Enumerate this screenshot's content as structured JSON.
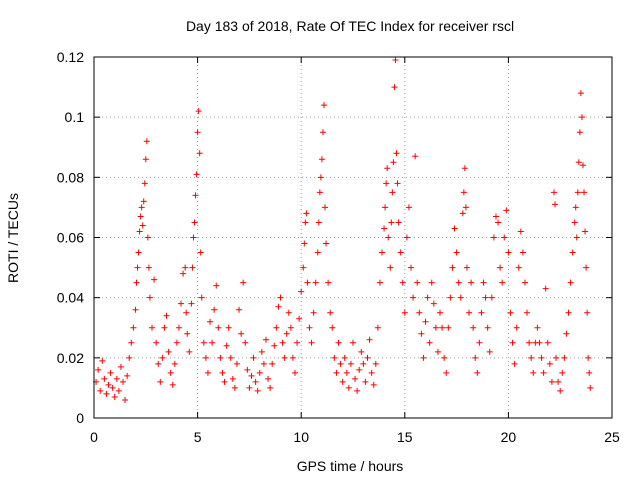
{
  "chart_data": {
    "type": "scatter",
    "title": "Day 183 of 2018, Rate Of TEC Index for receiver rscl",
    "xlabel": "GPS time / hours",
    "ylabel": "ROTI / TECUs",
    "xlim": [
      0,
      25
    ],
    "ylim": [
      0,
      0.12
    ],
    "xticks": [
      0,
      5,
      10,
      15,
      20,
      25
    ],
    "xtick_labels": [
      "0",
      "5",
      "10",
      "15",
      "20",
      "25"
    ],
    "yticks": [
      0,
      0.02,
      0.04,
      0.06,
      0.08,
      0.1,
      0.12
    ],
    "ytick_labels": [
      "0",
      "0.02",
      "0.04",
      "0.06",
      "0.08",
      "0.1",
      "0.12"
    ],
    "grid": true,
    "marker": "+",
    "color": "#ff0000",
    "series": [
      {
        "name": "ROTI",
        "points": [
          [
            0.1,
            0.012
          ],
          [
            0.2,
            0.016
          ],
          [
            0.3,
            0.009
          ],
          [
            0.4,
            0.019
          ],
          [
            0.5,
            0.013
          ],
          [
            0.6,
            0.008
          ],
          [
            0.7,
            0.011
          ],
          [
            0.8,
            0.015
          ],
          [
            0.9,
            0.01
          ],
          [
            1.0,
            0.007
          ],
          [
            1.1,
            0.013
          ],
          [
            1.2,
            0.009
          ],
          [
            1.3,
            0.017
          ],
          [
            1.4,
            0.012
          ],
          [
            1.5,
            0.006
          ],
          [
            1.6,
            0.014
          ],
          [
            1.7,
            0.02
          ],
          [
            1.8,
            0.025
          ],
          [
            1.9,
            0.03
          ],
          [
            2.0,
            0.036
          ],
          [
            2.05,
            0.045
          ],
          [
            2.1,
            0.05
          ],
          [
            2.15,
            0.055
          ],
          [
            2.2,
            0.062
          ],
          [
            2.25,
            0.067
          ],
          [
            2.3,
            0.07
          ],
          [
            2.35,
            0.064
          ],
          [
            2.4,
            0.072
          ],
          [
            2.45,
            0.078
          ],
          [
            2.5,
            0.086
          ],
          [
            2.55,
            0.092
          ],
          [
            2.6,
            0.06
          ],
          [
            2.65,
            0.05
          ],
          [
            2.7,
            0.04
          ],
          [
            2.8,
            0.03
          ],
          [
            2.9,
            0.046
          ],
          [
            3.0,
            0.025
          ],
          [
            3.1,
            0.018
          ],
          [
            3.2,
            0.012
          ],
          [
            3.3,
            0.02
          ],
          [
            3.4,
            0.03
          ],
          [
            3.5,
            0.034
          ],
          [
            3.6,
            0.022
          ],
          [
            3.7,
            0.015
          ],
          [
            3.8,
            0.011
          ],
          [
            3.9,
            0.018
          ],
          [
            4.0,
            0.025
          ],
          [
            4.1,
            0.03
          ],
          [
            4.2,
            0.038
          ],
          [
            4.3,
            0.048
          ],
          [
            4.4,
            0.05
          ],
          [
            4.45,
            0.035
          ],
          [
            4.5,
            0.028
          ],
          [
            4.6,
            0.022
          ],
          [
            4.7,
            0.038
          ],
          [
            4.75,
            0.05
          ],
          [
            4.8,
            0.06
          ],
          [
            4.85,
            0.065
          ],
          [
            4.9,
            0.074
          ],
          [
            4.95,
            0.081
          ],
          [
            5.0,
            0.095
          ],
          [
            5.05,
            0.102
          ],
          [
            5.1,
            0.088
          ],
          [
            5.15,
            0.055
          ],
          [
            5.2,
            0.04
          ],
          [
            5.3,
            0.025
          ],
          [
            5.4,
            0.02
          ],
          [
            5.5,
            0.015
          ],
          [
            5.6,
            0.032
          ],
          [
            5.7,
            0.025
          ],
          [
            5.8,
            0.036
          ],
          [
            5.9,
            0.044
          ],
          [
            6.0,
            0.03
          ],
          [
            6.1,
            0.02
          ],
          [
            6.2,
            0.015
          ],
          [
            6.3,
            0.012
          ],
          [
            6.4,
            0.024
          ],
          [
            6.5,
            0.03
          ],
          [
            6.6,
            0.02
          ],
          [
            6.7,
            0.013
          ],
          [
            6.8,
            0.01
          ],
          [
            6.9,
            0.018
          ],
          [
            7.0,
            0.036
          ],
          [
            7.1,
            0.028
          ],
          [
            7.2,
            0.045
          ],
          [
            7.3,
            0.025
          ],
          [
            7.4,
            0.016
          ],
          [
            7.5,
            0.01
          ],
          [
            7.6,
            0.014
          ],
          [
            7.7,
            0.02
          ],
          [
            7.8,
            0.012
          ],
          [
            7.9,
            0.009
          ],
          [
            8.0,
            0.015
          ],
          [
            8.1,
            0.022
          ],
          [
            8.2,
            0.018
          ],
          [
            8.3,
            0.026
          ],
          [
            8.4,
            0.013
          ],
          [
            8.5,
            0.01
          ],
          [
            8.6,
            0.018
          ],
          [
            8.7,
            0.024
          ],
          [
            8.8,
            0.03
          ],
          [
            8.9,
            0.037
          ],
          [
            9.0,
            0.04
          ],
          [
            9.1,
            0.025
          ],
          [
            9.2,
            0.02
          ],
          [
            9.3,
            0.028
          ],
          [
            9.4,
            0.035
          ],
          [
            9.5,
            0.03
          ],
          [
            9.6,
            0.02
          ],
          [
            9.7,
            0.015
          ],
          [
            9.8,
            0.025
          ],
          [
            9.9,
            0.033
          ],
          [
            10.0,
            0.042
          ],
          [
            10.1,
            0.05
          ],
          [
            10.15,
            0.058
          ],
          [
            10.2,
            0.065
          ],
          [
            10.25,
            0.068
          ],
          [
            10.3,
            0.045
          ],
          [
            10.4,
            0.03
          ],
          [
            10.5,
            0.025
          ],
          [
            10.6,
            0.035
          ],
          [
            10.7,
            0.045
          ],
          [
            10.8,
            0.055
          ],
          [
            10.85,
            0.065
          ],
          [
            10.9,
            0.075
          ],
          [
            10.95,
            0.08
          ],
          [
            11.0,
            0.086
          ],
          [
            11.05,
            0.095
          ],
          [
            11.1,
            0.104
          ],
          [
            11.15,
            0.07
          ],
          [
            11.2,
            0.058
          ],
          [
            11.3,
            0.045
          ],
          [
            11.4,
            0.035
          ],
          [
            11.5,
            0.03
          ],
          [
            11.6,
            0.02
          ],
          [
            11.7,
            0.015
          ],
          [
            11.8,
            0.025
          ],
          [
            11.9,
            0.018
          ],
          [
            12.0,
            0.012
          ],
          [
            12.1,
            0.02
          ],
          [
            12.2,
            0.015
          ],
          [
            12.3,
            0.01
          ],
          [
            12.4,
            0.018
          ],
          [
            12.5,
            0.025
          ],
          [
            12.6,
            0.013
          ],
          [
            12.7,
            0.009
          ],
          [
            12.8,
            0.016
          ],
          [
            12.9,
            0.022
          ],
          [
            13.0,
            0.018
          ],
          [
            13.1,
            0.012
          ],
          [
            13.2,
            0.02
          ],
          [
            13.3,
            0.026
          ],
          [
            13.4,
            0.015
          ],
          [
            13.5,
            0.011
          ],
          [
            13.6,
            0.018
          ],
          [
            13.7,
            0.03
          ],
          [
            13.8,
            0.045
          ],
          [
            13.9,
            0.055
          ],
          [
            14.0,
            0.063
          ],
          [
            14.05,
            0.07
          ],
          [
            14.1,
            0.078
          ],
          [
            14.15,
            0.083
          ],
          [
            14.2,
            0.06
          ],
          [
            14.3,
            0.05
          ],
          [
            14.35,
            0.065
          ],
          [
            14.4,
            0.075
          ],
          [
            14.45,
            0.085
          ],
          [
            14.5,
            0.11
          ],
          [
            14.55,
            0.119
          ],
          [
            14.6,
            0.088
          ],
          [
            14.65,
            0.078
          ],
          [
            14.7,
            0.065
          ],
          [
            14.8,
            0.055
          ],
          [
            14.9,
            0.045
          ],
          [
            15.0,
            0.035
          ],
          [
            15.1,
            0.06
          ],
          [
            15.2,
            0.07
          ],
          [
            15.3,
            0.05
          ],
          [
            15.4,
            0.04
          ],
          [
            15.5,
            0.087
          ],
          [
            15.6,
            0.045
          ],
          [
            15.7,
            0.035
          ],
          [
            15.8,
            0.028
          ],
          [
            15.9,
            0.02
          ],
          [
            16.0,
            0.032
          ],
          [
            16.1,
            0.04
          ],
          [
            16.2,
            0.025
          ],
          [
            16.3,
            0.045
          ],
          [
            16.4,
            0.038
          ],
          [
            16.5,
            0.03
          ],
          [
            16.6,
            0.022
          ],
          [
            16.7,
            0.035
          ],
          [
            16.8,
            0.03
          ],
          [
            16.9,
            0.02
          ],
          [
            17.0,
            0.015
          ],
          [
            17.1,
            0.03
          ],
          [
            17.2,
            0.04
          ],
          [
            17.3,
            0.05
          ],
          [
            17.4,
            0.063
          ],
          [
            17.5,
            0.055
          ],
          [
            17.6,
            0.045
          ],
          [
            17.7,
            0.04
          ],
          [
            17.8,
            0.068
          ],
          [
            17.85,
            0.075
          ],
          [
            17.9,
            0.083
          ],
          [
            17.95,
            0.07
          ],
          [
            18.0,
            0.05
          ],
          [
            18.1,
            0.035
          ],
          [
            18.2,
            0.045
          ],
          [
            18.3,
            0.03
          ],
          [
            18.4,
            0.02
          ],
          [
            18.5,
            0.015
          ],
          [
            18.6,
            0.025
          ],
          [
            18.7,
            0.035
          ],
          [
            18.8,
            0.045
          ],
          [
            18.9,
            0.04
          ],
          [
            19.0,
            0.03
          ],
          [
            19.1,
            0.022
          ],
          [
            19.2,
            0.04
          ],
          [
            19.3,
            0.06
          ],
          [
            19.4,
            0.067
          ],
          [
            19.5,
            0.065
          ],
          [
            19.6,
            0.05
          ],
          [
            19.7,
            0.045
          ],
          [
            19.8,
            0.06
          ],
          [
            19.9,
            0.069
          ],
          [
            20.0,
            0.055
          ],
          [
            20.1,
            0.035
          ],
          [
            20.2,
            0.025
          ],
          [
            20.3,
            0.018
          ],
          [
            20.4,
            0.03
          ],
          [
            20.5,
            0.05
          ],
          [
            20.6,
            0.062
          ],
          [
            20.7,
            0.055
          ],
          [
            20.8,
            0.045
          ],
          [
            20.9,
            0.035
          ],
          [
            21.0,
            0.025
          ],
          [
            21.1,
            0.02
          ],
          [
            21.2,
            0.015
          ],
          [
            21.3,
            0.025
          ],
          [
            21.4,
            0.03
          ],
          [
            21.5,
            0.025
          ],
          [
            21.6,
            0.02
          ],
          [
            21.7,
            0.015
          ],
          [
            21.8,
            0.043
          ],
          [
            21.9,
            0.025
          ],
          [
            22.0,
            0.018
          ],
          [
            22.1,
            0.012
          ],
          [
            22.2,
            0.075
          ],
          [
            22.25,
            0.071
          ],
          [
            22.3,
            0.02
          ],
          [
            22.4,
            0.012
          ],
          [
            22.5,
            0.009
          ],
          [
            22.6,
            0.015
          ],
          [
            22.7,
            0.02
          ],
          [
            22.8,
            0.028
          ],
          [
            22.9,
            0.035
          ],
          [
            23.0,
            0.045
          ],
          [
            23.1,
            0.055
          ],
          [
            23.2,
            0.065
          ],
          [
            23.25,
            0.07
          ],
          [
            23.3,
            0.06
          ],
          [
            23.35,
            0.075
          ],
          [
            23.4,
            0.085
          ],
          [
            23.45,
            0.095
          ],
          [
            23.5,
            0.108
          ],
          [
            23.55,
            0.1
          ],
          [
            23.6,
            0.084
          ],
          [
            23.65,
            0.075
          ],
          [
            23.7,
            0.062
          ],
          [
            23.75,
            0.05
          ],
          [
            23.8,
            0.035
          ],
          [
            23.85,
            0.02
          ],
          [
            23.9,
            0.015
          ],
          [
            23.95,
            0.01
          ]
        ]
      }
    ]
  }
}
